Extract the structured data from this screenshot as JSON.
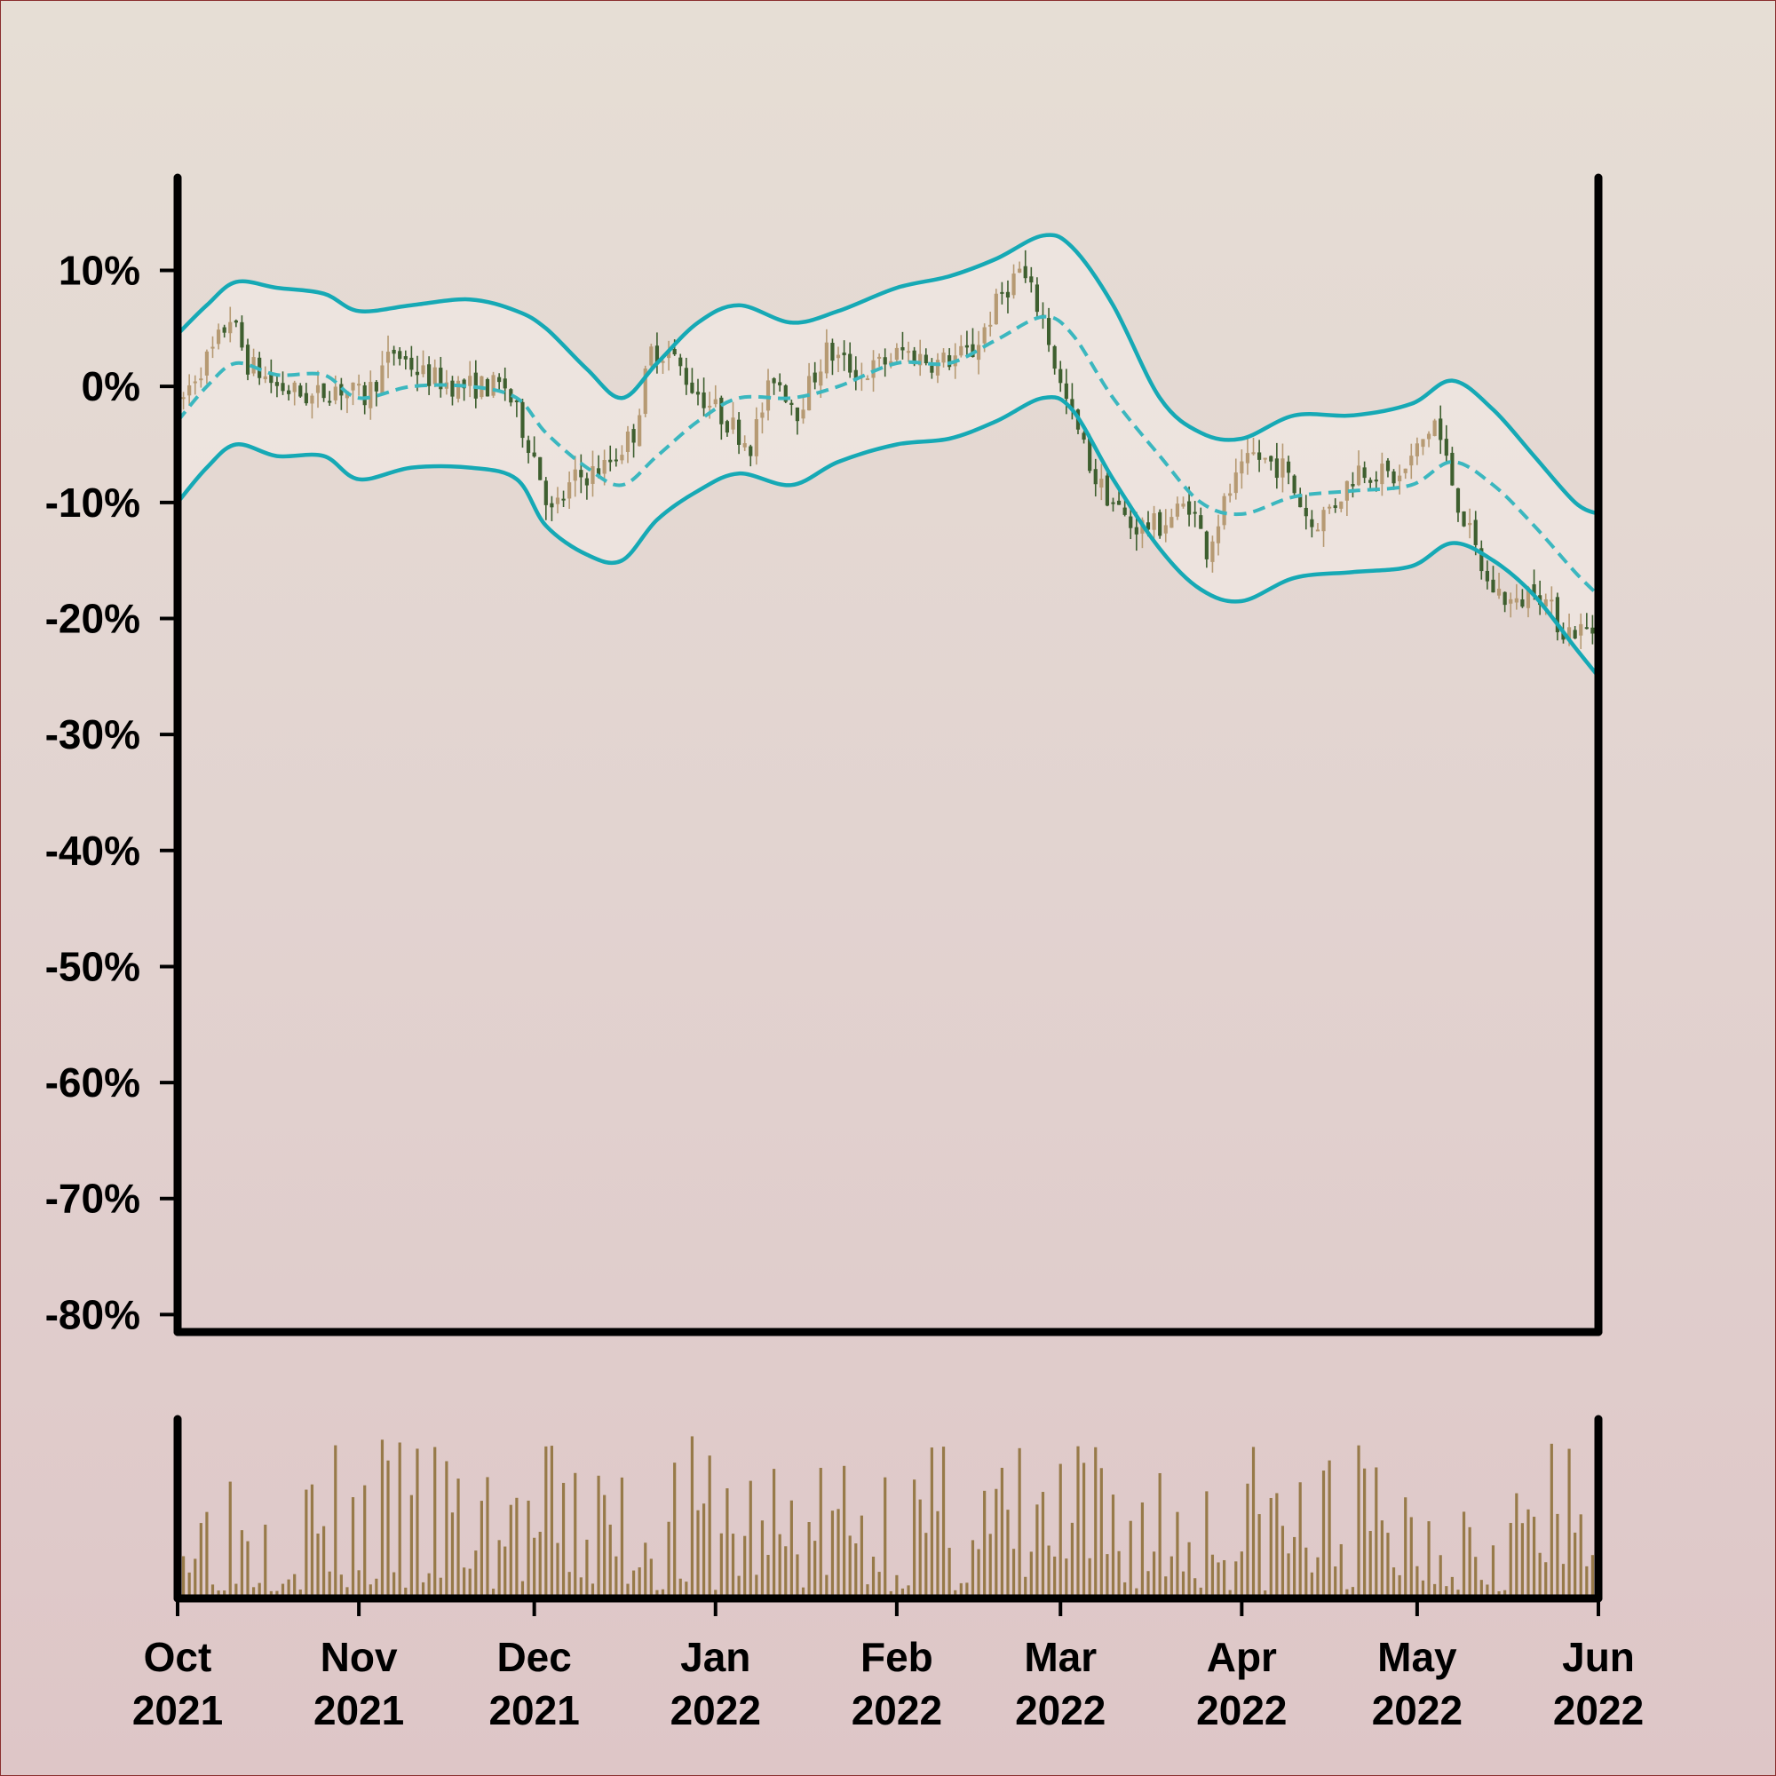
{
  "chart_data": {
    "type": "candlestick",
    "y_axis": {
      "ticks": [
        "10%",
        "0%",
        "-10%",
        "-20%",
        "-30%",
        "-40%",
        "-50%",
        "-60%",
        "-70%",
        "-80%"
      ],
      "tick_values": [
        10,
        0,
        -10,
        -20,
        -30,
        -40,
        -50,
        -60,
        -70,
        -80
      ],
      "range": [
        -81.5,
        18
      ]
    },
    "x_axis": {
      "ticks": [
        {
          "month": "Oct",
          "year": "2021"
        },
        {
          "month": "Nov",
          "year": "2021"
        },
        {
          "month": "Dec",
          "year": "2021"
        },
        {
          "month": "Jan",
          "year": "2022"
        },
        {
          "month": "Feb",
          "year": "2022"
        },
        {
          "month": "Mar",
          "year": "2022"
        },
        {
          "month": "Apr",
          "year": "2022"
        },
        {
          "month": "May",
          "year": "2022"
        },
        {
          "month": "Jun",
          "year": "2022"
        }
      ],
      "tick_dates": [
        "2021-10-01",
        "2021-11-01",
        "2021-12-01",
        "2022-01-01",
        "2022-02-01",
        "2022-03-01",
        "2022-04-01",
        "2022-05-01",
        "2022-06-01"
      ],
      "range": [
        "2021-10-01",
        "2022-06-01"
      ]
    },
    "price_path": [
      {
        "date": "2021-10-01",
        "value": -2
      },
      {
        "date": "2021-10-04",
        "value": 1
      },
      {
        "date": "2021-10-07",
        "value": 3
      },
      {
        "date": "2021-10-10",
        "value": 6
      },
      {
        "date": "2021-10-13",
        "value": 2
      },
      {
        "date": "2021-10-18",
        "value": 0
      },
      {
        "date": "2021-10-24",
        "value": -1
      },
      {
        "date": "2021-10-28",
        "value": 0
      },
      {
        "date": "2021-11-02",
        "value": -1
      },
      {
        "date": "2021-11-07",
        "value": 3
      },
      {
        "date": "2021-11-12",
        "value": 1
      },
      {
        "date": "2021-11-18",
        "value": 0
      },
      {
        "date": "2021-11-26",
        "value": 0
      },
      {
        "date": "2021-12-01",
        "value": -6
      },
      {
        "date": "2021-12-04",
        "value": -11
      },
      {
        "date": "2021-12-08",
        "value": -8
      },
      {
        "date": "2021-12-13",
        "value": -7
      },
      {
        "date": "2021-12-18",
        "value": -4
      },
      {
        "date": "2021-12-21",
        "value": 3
      },
      {
        "date": "2021-12-24",
        "value": 3
      },
      {
        "date": "2021-12-28",
        "value": 0
      },
      {
        "date": "2022-01-03",
        "value": -3
      },
      {
        "date": "2022-01-07",
        "value": -5
      },
      {
        "date": "2022-01-11",
        "value": 1
      },
      {
        "date": "2022-01-15",
        "value": -2
      },
      {
        "date": "2022-01-20",
        "value": 3
      },
      {
        "date": "2022-01-26",
        "value": 1
      },
      {
        "date": "2022-02-02",
        "value": 3
      },
      {
        "date": "2022-02-08",
        "value": 2
      },
      {
        "date": "2022-02-14",
        "value": 3
      },
      {
        "date": "2022-02-19",
        "value": 8
      },
      {
        "date": "2022-02-22",
        "value": 10
      },
      {
        "date": "2022-02-26",
        "value": 6
      },
      {
        "date": "2022-03-01",
        "value": 0
      },
      {
        "date": "2022-03-07",
        "value": -8
      },
      {
        "date": "2022-03-13",
        "value": -12
      },
      {
        "date": "2022-03-18",
        "value": -12
      },
      {
        "date": "2022-03-23",
        "value": -10
      },
      {
        "date": "2022-03-26",
        "value": -14
      },
      {
        "date": "2022-03-30",
        "value": -9
      },
      {
        "date": "2022-04-03",
        "value": -6
      },
      {
        "date": "2022-04-08",
        "value": -7
      },
      {
        "date": "2022-04-13",
        "value": -12
      },
      {
        "date": "2022-04-17",
        "value": -10
      },
      {
        "date": "2022-04-21",
        "value": -7
      },
      {
        "date": "2022-04-28",
        "value": -8
      },
      {
        "date": "2022-05-04",
        "value": -3
      },
      {
        "date": "2022-05-08",
        "value": -10
      },
      {
        "date": "2022-05-13",
        "value": -17
      },
      {
        "date": "2022-05-18",
        "value": -19
      },
      {
        "date": "2022-05-21",
        "value": -17
      },
      {
        "date": "2022-05-26",
        "value": -21
      },
      {
        "date": "2022-06-01",
        "value": -21
      }
    ],
    "bollinger": {
      "middle": [
        {
          "date": "2021-10-01",
          "value": -3
        },
        {
          "date": "2021-10-06",
          "value": 0
        },
        {
          "date": "2021-10-11",
          "value": 2
        },
        {
          "date": "2021-10-18",
          "value": 1
        },
        {
          "date": "2021-10-26",
          "value": 1
        },
        {
          "date": "2021-11-01",
          "value": -1
        },
        {
          "date": "2021-11-10",
          "value": 0
        },
        {
          "date": "2021-11-20",
          "value": 0
        },
        {
          "date": "2021-11-28",
          "value": -1
        },
        {
          "date": "2021-12-03",
          "value": -4
        },
        {
          "date": "2021-12-10",
          "value": -7
        },
        {
          "date": "2021-12-16",
          "value": -8.5
        },
        {
          "date": "2021-12-22",
          "value": -6
        },
        {
          "date": "2021-12-29",
          "value": -3
        },
        {
          "date": "2022-01-05",
          "value": -1
        },
        {
          "date": "2022-01-14",
          "value": -1
        },
        {
          "date": "2022-01-22",
          "value": 0
        },
        {
          "date": "2022-02-01",
          "value": 2
        },
        {
          "date": "2022-02-10",
          "value": 2
        },
        {
          "date": "2022-02-18",
          "value": 4
        },
        {
          "date": "2022-02-26",
          "value": 6
        },
        {
          "date": "2022-03-03",
          "value": 4.5
        },
        {
          "date": "2022-03-10",
          "value": -1
        },
        {
          "date": "2022-03-18",
          "value": -6
        },
        {
          "date": "2022-03-25",
          "value": -10
        },
        {
          "date": "2022-04-01",
          "value": -11
        },
        {
          "date": "2022-04-10",
          "value": -9.5
        },
        {
          "date": "2022-04-20",
          "value": -9
        },
        {
          "date": "2022-04-30",
          "value": -8.5
        },
        {
          "date": "2022-05-07",
          "value": -6.5
        },
        {
          "date": "2022-05-14",
          "value": -8.5
        },
        {
          "date": "2022-05-21",
          "value": -12
        },
        {
          "date": "2022-05-28",
          "value": -16
        },
        {
          "date": "2022-06-01",
          "value": -18
        }
      ],
      "upper": [
        {
          "date": "2021-10-01",
          "value": 4.5
        },
        {
          "date": "2021-10-06",
          "value": 7
        },
        {
          "date": "2021-10-11",
          "value": 9
        },
        {
          "date": "2021-10-18",
          "value": 8.5
        },
        {
          "date": "2021-10-26",
          "value": 8
        },
        {
          "date": "2021-11-01",
          "value": 6.5
        },
        {
          "date": "2021-11-10",
          "value": 7
        },
        {
          "date": "2021-11-20",
          "value": 7.5
        },
        {
          "date": "2021-11-28",
          "value": 6.5
        },
        {
          "date": "2021-12-03",
          "value": 5
        },
        {
          "date": "2021-12-10",
          "value": 1.5
        },
        {
          "date": "2021-12-16",
          "value": -1
        },
        {
          "date": "2021-12-22",
          "value": 2
        },
        {
          "date": "2021-12-29",
          "value": 5.5
        },
        {
          "date": "2022-01-05",
          "value": 7
        },
        {
          "date": "2022-01-14",
          "value": 5.5
        },
        {
          "date": "2022-01-22",
          "value": 6.5
        },
        {
          "date": "2022-02-01",
          "value": 8.5
        },
        {
          "date": "2022-02-10",
          "value": 9.5
        },
        {
          "date": "2022-02-18",
          "value": 11
        },
        {
          "date": "2022-02-26",
          "value": 13
        },
        {
          "date": "2022-03-03",
          "value": 12
        },
        {
          "date": "2022-03-10",
          "value": 7
        },
        {
          "date": "2022-03-18",
          "value": -1
        },
        {
          "date": "2022-03-25",
          "value": -4
        },
        {
          "date": "2022-04-01",
          "value": -4.5
        },
        {
          "date": "2022-04-10",
          "value": -2.5
        },
        {
          "date": "2022-04-20",
          "value": -2.5
        },
        {
          "date": "2022-04-30",
          "value": -1.5
        },
        {
          "date": "2022-05-07",
          "value": 0.5
        },
        {
          "date": "2022-05-14",
          "value": -2
        },
        {
          "date": "2022-05-21",
          "value": -6
        },
        {
          "date": "2022-05-28",
          "value": -10
        },
        {
          "date": "2022-06-01",
          "value": -11
        }
      ],
      "lower": [
        {
          "date": "2021-10-01",
          "value": -10
        },
        {
          "date": "2021-10-06",
          "value": -7
        },
        {
          "date": "2021-10-11",
          "value": -5
        },
        {
          "date": "2021-10-18",
          "value": -6
        },
        {
          "date": "2021-10-26",
          "value": -6
        },
        {
          "date": "2021-11-01",
          "value": -8
        },
        {
          "date": "2021-11-10",
          "value": -7
        },
        {
          "date": "2021-11-20",
          "value": -7
        },
        {
          "date": "2021-11-28",
          "value": -8
        },
        {
          "date": "2021-12-03",
          "value": -12
        },
        {
          "date": "2021-12-10",
          "value": -14.5
        },
        {
          "date": "2021-12-16",
          "value": -15
        },
        {
          "date": "2021-12-22",
          "value": -11.5
        },
        {
          "date": "2021-12-29",
          "value": -9
        },
        {
          "date": "2022-01-05",
          "value": -7.5
        },
        {
          "date": "2022-01-14",
          "value": -8.5
        },
        {
          "date": "2022-01-22",
          "value": -6.5
        },
        {
          "date": "2022-02-01",
          "value": -5
        },
        {
          "date": "2022-02-10",
          "value": -4.5
        },
        {
          "date": "2022-02-18",
          "value": -3
        },
        {
          "date": "2022-02-26",
          "value": -1
        },
        {
          "date": "2022-03-03",
          "value": -2
        },
        {
          "date": "2022-03-10",
          "value": -8
        },
        {
          "date": "2022-03-18",
          "value": -14
        },
        {
          "date": "2022-03-25",
          "value": -17.5
        },
        {
          "date": "2022-04-01",
          "value": -18.5
        },
        {
          "date": "2022-04-10",
          "value": -16.5
        },
        {
          "date": "2022-04-20",
          "value": -16
        },
        {
          "date": "2022-04-30",
          "value": -15.5
        },
        {
          "date": "2022-05-07",
          "value": -13.5
        },
        {
          "date": "2022-05-14",
          "value": -15
        },
        {
          "date": "2022-05-21",
          "value": -18
        },
        {
          "date": "2022-05-28",
          "value": -22.5
        },
        {
          "date": "2022-06-01",
          "value": -25
        }
      ]
    },
    "grid": false,
    "legend": "none",
    "colors": {
      "up_candle": "#b69a73",
      "down_candle": "#3e5f2f",
      "band_line": "#16a9b5",
      "band_fill": "#efe5e1",
      "volume": "#977a49",
      "axis": "#000000"
    }
  }
}
